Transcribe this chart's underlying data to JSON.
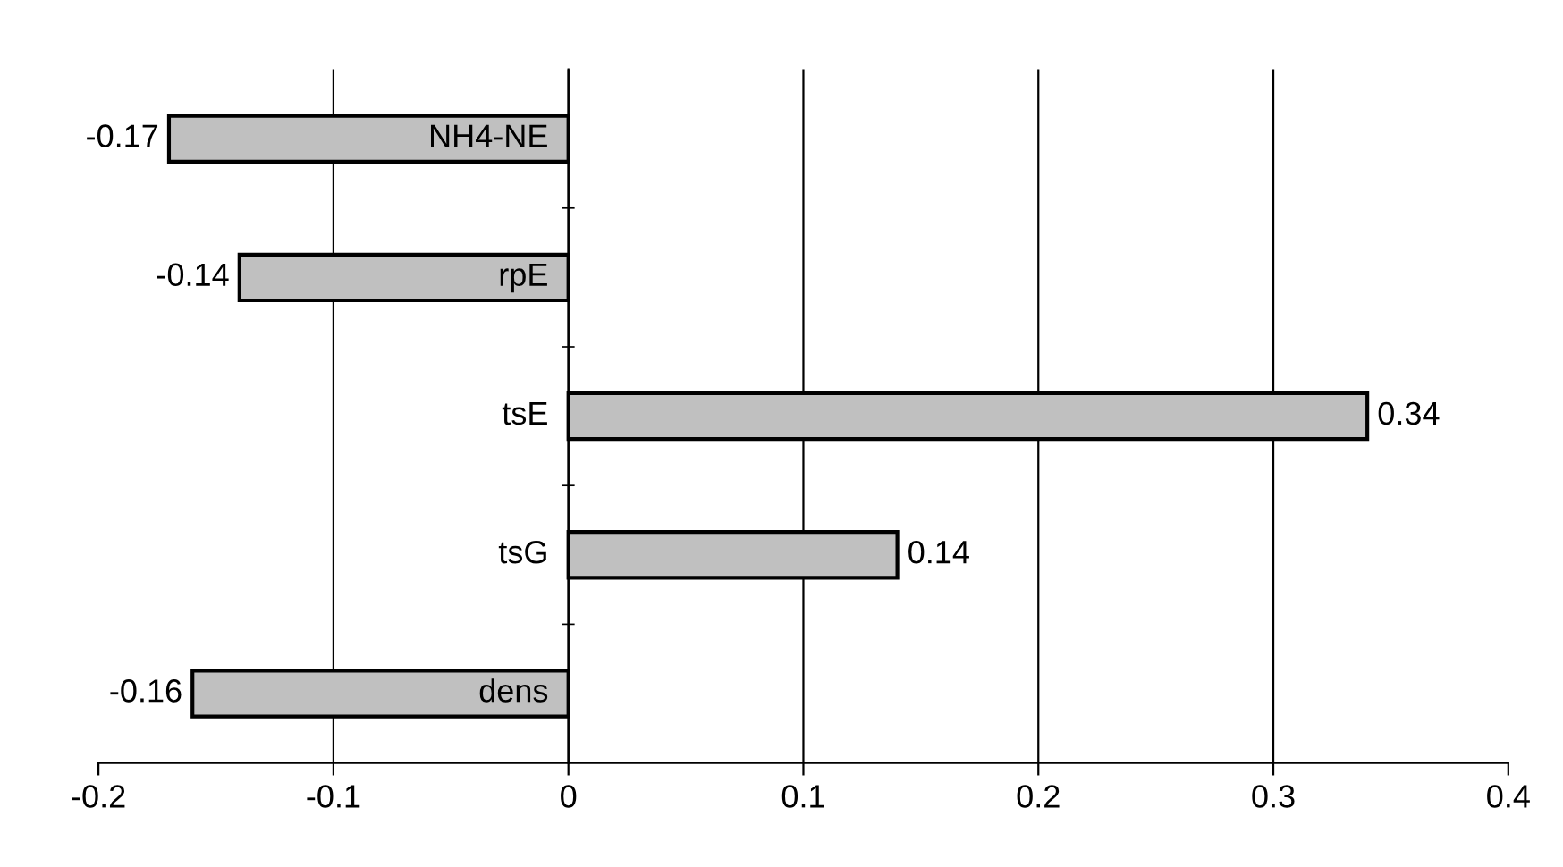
{
  "chart_data": {
    "type": "bar",
    "orientation": "horizontal",
    "categories": [
      "NH4-NE",
      "rpE",
      "tsE",
      "tsG",
      "dens"
    ],
    "values": [
      -0.17,
      -0.14,
      0.34,
      0.14,
      -0.16
    ],
    "color": "#c0c0c0",
    "xlim": [
      -0.2,
      0.4
    ],
    "xticks": [
      -0.2,
      -0.1,
      0,
      0.1,
      0.2,
      0.3,
      0.4
    ],
    "grid": "x",
    "data_labels": true
  }
}
